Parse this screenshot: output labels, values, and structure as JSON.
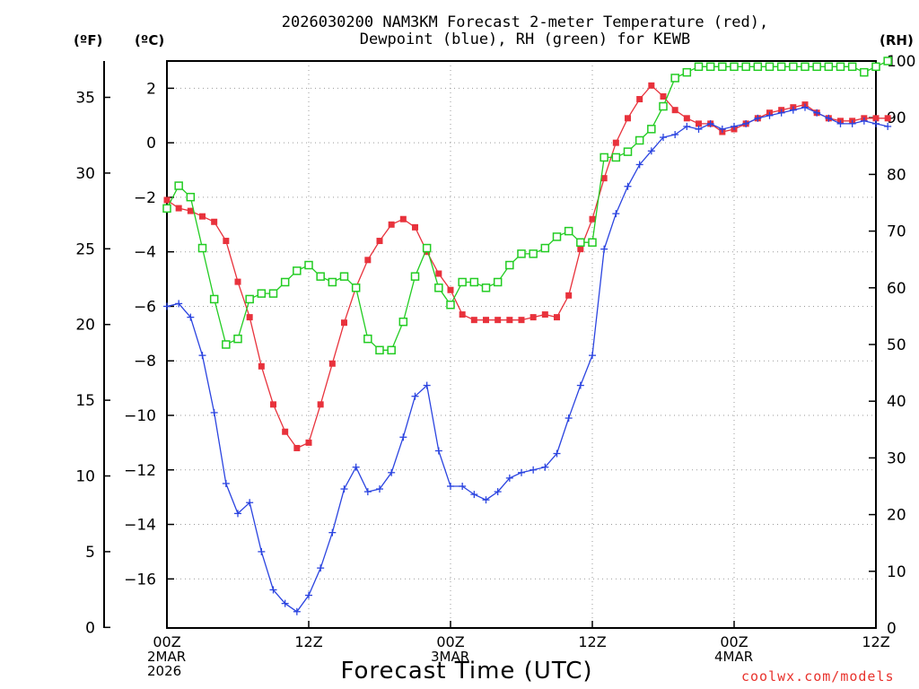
{
  "chart_data": {
    "type": "line",
    "title_line1": "2026030200 NAM3KM Forecast 2-meter Temperature (red),",
    "title_line2": "Dewpoint (blue), RH (green) for KEWB",
    "xlabel": "Forecast Time (UTC)",
    "credit": "coolwx.com/models",
    "units": {
      "fahrenheit": "(ºF)",
      "celsius": "(ºC)",
      "rh": "(RH)"
    },
    "x_range_hours": [
      0,
      60
    ],
    "x_ticks": [
      {
        "hour": 0,
        "label": "00Z",
        "sub1": "2MAR",
        "sub2": "2026"
      },
      {
        "hour": 12,
        "label": "12Z",
        "sub1": "",
        "sub2": ""
      },
      {
        "hour": 24,
        "label": "00Z",
        "sub1": "3MAR",
        "sub2": ""
      },
      {
        "hour": 36,
        "label": "12Z",
        "sub1": "",
        "sub2": ""
      },
      {
        "hour": 48,
        "label": "00Z",
        "sub1": "4MAR",
        "sub2": ""
      },
      {
        "hour": 60,
        "label": "12Z",
        "sub1": "",
        "sub2": ""
      }
    ],
    "celsius_axis": {
      "range": [
        -17.8,
        3.0
      ],
      "ticks": [
        2,
        0,
        -2,
        -4,
        -6,
        -8,
        -10,
        -12,
        -14,
        -16
      ],
      "tick_labels": [
        "2",
        "0",
        "−2",
        "−4",
        "−6",
        "−8",
        "−10",
        "−12",
        "−14",
        "−16"
      ]
    },
    "fahrenheit_axis": {
      "ticks": [
        0,
        5,
        10,
        15,
        20,
        25,
        30,
        35
      ],
      "tick_labels": [
        "0",
        "5",
        "10",
        "15",
        "20",
        "25",
        "30",
        "35"
      ]
    },
    "rh_axis": {
      "range": [
        0,
        100
      ],
      "ticks": [
        0,
        10,
        20,
        30,
        40,
        50,
        60,
        70,
        80,
        90,
        100
      ],
      "tick_labels": [
        "0",
        "10",
        "20",
        "30",
        "40",
        "50",
        "60",
        "70",
        "80",
        "90",
        "100"
      ]
    },
    "series": [
      {
        "name": "2-meter Temperature",
        "unit": "C",
        "color": "#e8323c",
        "marker": "square",
        "values": [
          -2.1,
          -2.4,
          -2.5,
          -2.7,
          -2.9,
          -3.6,
          -5.1,
          -6.4,
          -8.2,
          -9.6,
          -10.6,
          -11.2,
          -11.0,
          -9.6,
          -8.1,
          -6.6,
          -5.3,
          -4.3,
          -3.6,
          -3.0,
          -2.8,
          -3.1,
          -4.0,
          -4.8,
          -5.4,
          -6.3,
          -6.5,
          -6.5,
          -6.5,
          -6.5,
          -6.5,
          -6.4,
          -6.3,
          -6.4,
          -5.6,
          -3.9,
          -2.8,
          -1.3,
          0.0,
          0.9,
          1.6,
          2.1,
          1.7,
          1.2,
          0.9,
          0.7,
          0.7,
          0.4,
          0.5,
          0.7,
          0.9,
          1.1,
          1.2,
          1.3,
          1.4,
          1.1,
          0.9,
          0.8,
          0.8,
          0.9,
          0.9,
          0.9
        ]
      },
      {
        "name": "Dewpoint",
        "unit": "C",
        "color": "#2b44e0",
        "marker": "plus",
        "values": [
          -6.0,
          -5.9,
          -6.4,
          -7.8,
          -9.9,
          -12.5,
          -13.6,
          -13.2,
          -15.0,
          -16.4,
          -16.9,
          -17.2,
          -16.6,
          -15.6,
          -14.3,
          -12.7,
          -11.9,
          -12.8,
          -12.7,
          -12.1,
          -10.8,
          -9.3,
          -8.9,
          -11.3,
          -12.6,
          -12.6,
          -12.9,
          -13.1,
          -12.8,
          -12.3,
          -12.1,
          -12.0,
          -11.9,
          -11.4,
          -10.1,
          -8.9,
          -7.8,
          -3.9,
          -2.6,
          -1.6,
          -0.8,
          -0.3,
          0.2,
          0.3,
          0.6,
          0.5,
          0.7,
          0.5,
          0.6,
          0.7,
          0.9,
          1.0,
          1.1,
          1.2,
          1.3,
          1.1,
          0.9,
          0.7,
          0.7,
          0.8,
          0.7,
          0.6
        ]
      },
      {
        "name": "Relative Humidity",
        "unit": "%",
        "color": "#22cc22",
        "marker": "open-square",
        "values": [
          74,
          78,
          76,
          67,
          58,
          50,
          51,
          58,
          59,
          59,
          61,
          63,
          64,
          62,
          61,
          62,
          60,
          51,
          49,
          49,
          54,
          62,
          67,
          60,
          57,
          61,
          61,
          60,
          61,
          64,
          66,
          66,
          67,
          69,
          70,
          68,
          68,
          83,
          83,
          84,
          86,
          88,
          92,
          97,
          98,
          99,
          99,
          99,
          99,
          99,
          99,
          99,
          99,
          99,
          99,
          99,
          99,
          99,
          99,
          98,
          99,
          100
        ]
      }
    ]
  }
}
